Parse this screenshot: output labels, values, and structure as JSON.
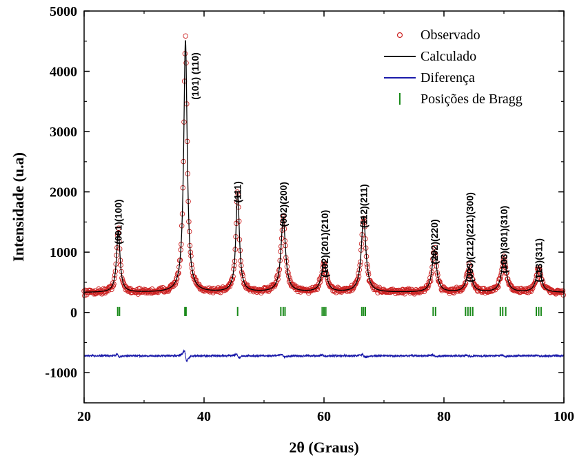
{
  "chart_data": {
    "type": "line",
    "title": "",
    "xlabel": "2θ (Graus)",
    "ylabel": "Intensidade (u.a)",
    "xlim": [
      20,
      100
    ],
    "ylim": [
      -1500,
      5000
    ],
    "xticks": [
      20,
      40,
      60,
      80,
      100
    ],
    "yticks": [
      -1000,
      0,
      1000,
      2000,
      3000,
      4000,
      5000
    ],
    "grid": false,
    "legend_position": "top-right",
    "legend": [
      {
        "label": "Observado",
        "style": "circle",
        "color": "#cc2222"
      },
      {
        "label": "Calculado",
        "style": "line",
        "color": "#000000"
      },
      {
        "label": "Diferença",
        "style": "line",
        "color": "#1a1aaa"
      },
      {
        "label": "Posições de Bragg",
        "style": "tick",
        "color": "#1a8a1a"
      }
    ],
    "background_level": 330,
    "difference_offset": -720,
    "peaks": [
      {
        "x": 25.7,
        "height": 1020,
        "width": 0.35
      },
      {
        "x": 36.9,
        "height": 4180,
        "width": 0.35
      },
      {
        "x": 45.6,
        "height": 1650,
        "width": 0.35
      },
      {
        "x": 53.2,
        "height": 1230,
        "width": 0.45
      },
      {
        "x": 60.0,
        "height": 490,
        "width": 0.5
      },
      {
        "x": 66.6,
        "height": 1250,
        "width": 0.45
      },
      {
        "x": 78.4,
        "height": 700,
        "width": 0.45
      },
      {
        "x": 84.2,
        "height": 410,
        "width": 0.5
      },
      {
        "x": 90.0,
        "height": 560,
        "width": 0.5
      },
      {
        "x": 95.8,
        "height": 410,
        "width": 0.5
      }
    ],
    "bragg_positions": [
      25.6,
      25.9,
      36.8,
      37.0,
      45.6,
      52.8,
      53.2,
      53.5,
      59.7,
      60.0,
      60.3,
      66.3,
      66.6,
      66.9,
      78.2,
      78.6,
      83.6,
      84.0,
      84.4,
      84.8,
      89.4,
      89.8,
      90.3,
      95.4,
      95.8,
      96.2
    ],
    "peak_labels": [
      {
        "text": "(001)(100)",
        "x": 25.7,
        "y": 1130
      },
      {
        "text": "(101) (110)",
        "x": 38.5,
        "y": 3530
      },
      {
        "text": "(111)",
        "x": 45.6,
        "y": 1820
      },
      {
        "text": "(002)(200)",
        "x": 53.2,
        "y": 1420
      },
      {
        "text": "(102)(201)(210)",
        "x": 60.1,
        "y": 580
      },
      {
        "text": "(112)(211)",
        "x": 66.6,
        "y": 1400
      },
      {
        "text": "(202)(220)",
        "x": 78.4,
        "y": 800
      },
      {
        "text": "(003)(212)(221)(300)",
        "x": 84.3,
        "y": 500
      },
      {
        "text": "(103)(301)(310)",
        "x": 90.0,
        "y": 650
      },
      {
        "text": "(113)(311)",
        "x": 95.8,
        "y": 500
      }
    ]
  }
}
